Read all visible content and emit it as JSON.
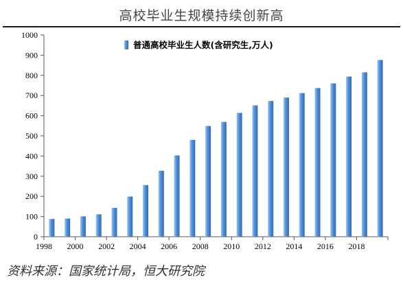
{
  "title": "高校毕业生规模持续创新高",
  "source": "资料来源：国家统计局，恒大研究院",
  "chart_data": {
    "type": "bar",
    "series": [
      {
        "name": "普通高校毕业生人数(含研究生,万人)",
        "values": [
          88,
          90,
          101,
          111,
          143,
          199,
          256,
          327,
          403,
          480,
          549,
          569,
          614,
          651,
          673,
          690,
          712,
          737,
          760,
          794,
          815,
          876
        ]
      }
    ],
    "categories": [
      "1998",
      "1999",
      "2000",
      "2001",
      "2002",
      "2003",
      "2004",
      "2005",
      "2006",
      "2007",
      "2008",
      "2009",
      "2010",
      "2011",
      "2012",
      "2013",
      "2014",
      "2015",
      "2016",
      "2017",
      "2018",
      "2019"
    ],
    "x_tick_labels": [
      "1998",
      "2000",
      "2002",
      "2004",
      "2006",
      "2008",
      "2010",
      "2012",
      "2014",
      "2016",
      "2018"
    ],
    "y_tick_labels": [
      "0",
      "100",
      "200",
      "300",
      "400",
      "500",
      "600",
      "700",
      "800",
      "900",
      "1000"
    ],
    "ylim": [
      0,
      1000
    ],
    "legend_position": "top-center",
    "grid": false,
    "bar_color": "#4f8ed8"
  }
}
